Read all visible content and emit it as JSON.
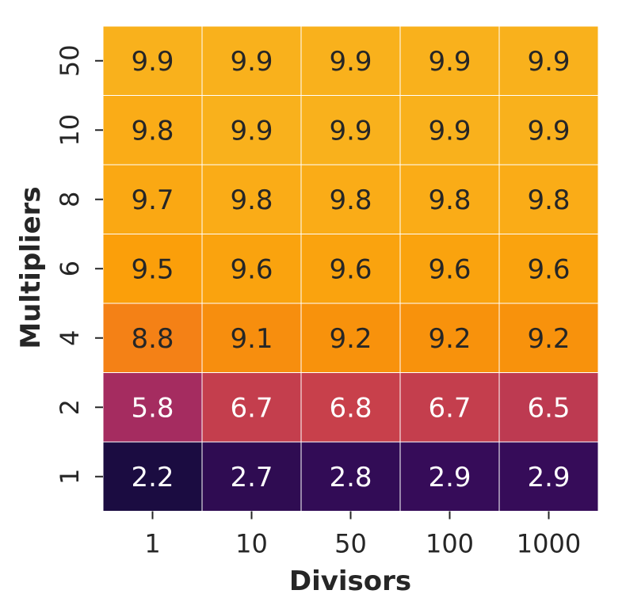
{
  "chart_data": {
    "type": "heatmap",
    "title": "",
    "xlabel": "Divisors",
    "ylabel": "Multipliers",
    "x_categories": [
      "1",
      "10",
      "50",
      "100",
      "1000"
    ],
    "y_categories": [
      "50",
      "10",
      "8",
      "6",
      "4",
      "2",
      "1"
    ],
    "values": [
      [
        9.9,
        9.9,
        9.9,
        9.9,
        9.9
      ],
      [
        9.8,
        9.9,
        9.9,
        9.9,
        9.9
      ],
      [
        9.7,
        9.8,
        9.8,
        9.8,
        9.8
      ],
      [
        9.5,
        9.6,
        9.6,
        9.6,
        9.6
      ],
      [
        8.8,
        9.1,
        9.2,
        9.2,
        9.2
      ],
      [
        5.8,
        6.7,
        6.8,
        6.7,
        6.5
      ],
      [
        2.2,
        2.7,
        2.8,
        2.9,
        2.9
      ]
    ],
    "colormap": "inferno",
    "vmin": 2.2,
    "vmax": 9.9,
    "annotated": true,
    "grid": false,
    "legend": "none",
    "colors": {
      "text_dark": "#262626",
      "text_light": "#ffffff",
      "cell_border": "#ffffff"
    }
  }
}
